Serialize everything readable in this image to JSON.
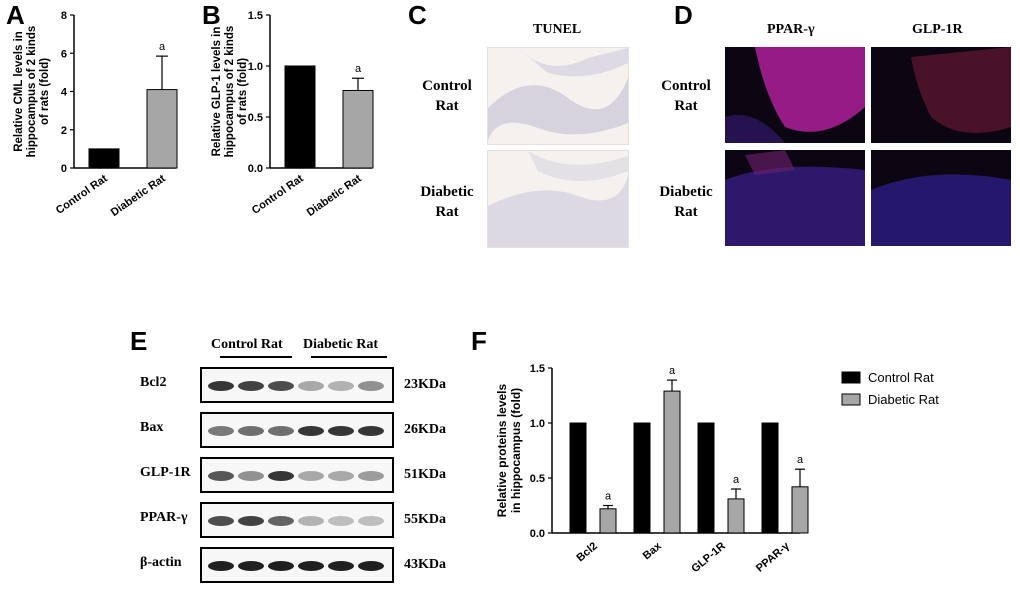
{
  "panels": {
    "A": "A",
    "B": "B",
    "C": "C",
    "D": "D",
    "E": "E",
    "F": "F"
  },
  "tunel": {
    "title": "TUNEL",
    "row1": [
      "Control",
      "Rat"
    ],
    "row2": [
      "Diabetic",
      "Rat"
    ]
  },
  "fluor": {
    "col1": "PPAR-γ",
    "col2": "GLP-1R",
    "row1": [
      "Control",
      "Rat"
    ],
    "row2": [
      "Diabetic",
      "Rat"
    ]
  },
  "blot": {
    "group1": "Control Rat",
    "group2": "Diabetic Rat",
    "rows": [
      {
        "label": "Bcl2",
        "kda": "23KDa"
      },
      {
        "label": "Bax",
        "kda": "26KDa"
      },
      {
        "label": "GLP-1R",
        "kda": "51KDa"
      },
      {
        "label": "PPAR-γ",
        "kda": "55KDa"
      },
      {
        "label": "β-actin",
        "kda": "43KDa"
      }
    ]
  },
  "colors": {
    "control": "#000000",
    "diabetic": "#a6a6a6",
    "tunel_bg": "#f4f1ef",
    "fluor_bg": "#0b0612"
  },
  "chart_data": [
    {
      "id": "A",
      "type": "bar",
      "categories": [
        "Control Rat",
        "Diabetic Rat"
      ],
      "values": [
        1.0,
        4.1
      ],
      "errors": [
        0,
        1.75
      ],
      "annotations": [
        "",
        "a"
      ],
      "ylabel": [
        "Relative CML levels in",
        "hippocampus of 2 kinds",
        "of rats (fold)"
      ],
      "ylim": [
        0,
        8
      ],
      "yticks": [
        0,
        2,
        4,
        6,
        8
      ]
    },
    {
      "id": "B",
      "type": "bar",
      "categories": [
        "Control Rat",
        "Diabetic Rat"
      ],
      "values": [
        1.0,
        0.76
      ],
      "errors": [
        0,
        0.12
      ],
      "annotations": [
        "",
        "a"
      ],
      "ylabel": [
        "Relative GLP-1 levels in",
        "hippocampus of 2 kinds",
        "of rats (fold)"
      ],
      "ylim": [
        0,
        1.5
      ],
      "yticks": [
        "0.0",
        "0.5",
        "1.0",
        "1.5"
      ]
    },
    {
      "id": "F",
      "type": "bar",
      "categories": [
        "Bcl2",
        "Bax",
        "GLP-1R",
        "PPAR-γ"
      ],
      "series": [
        {
          "name": "Control Rat",
          "values": [
            1.0,
            1.0,
            1.0,
            1.0
          ],
          "errors": [
            0,
            0,
            0,
            0
          ]
        },
        {
          "name": "Diabetic Rat",
          "values": [
            0.22,
            1.29,
            0.31,
            0.42
          ],
          "errors": [
            0.03,
            0.1,
            0.09,
            0.16
          ]
        }
      ],
      "annotations": [
        "a",
        "a",
        "a",
        "a"
      ],
      "ylabel": [
        "Relative proteins levels",
        "in hippocampus (fold)"
      ],
      "ylim": [
        0,
        1.5
      ],
      "yticks": [
        "0.0",
        "0.5",
        "1.0",
        "1.5"
      ],
      "legend": "right"
    }
  ]
}
